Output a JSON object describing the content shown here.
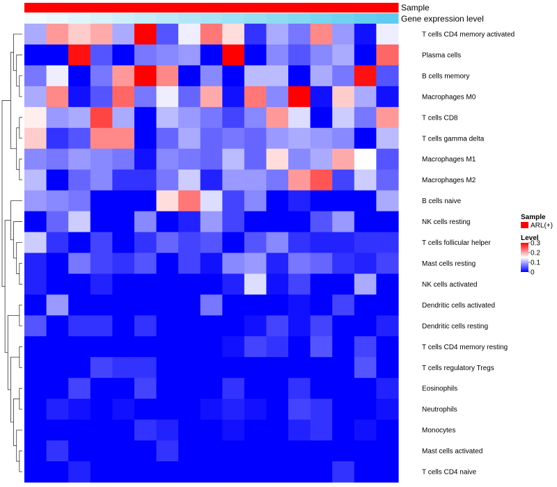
{
  "chart_data": {
    "type": "heatmap",
    "annotations": {
      "sample_label": "Sample",
      "expression_label": "Gene expression level"
    },
    "rows": [
      "T cells CD4 memory activated",
      "Plasma cells",
      "B cells memory",
      "Macrophages M0",
      "T cells CD8",
      "T cells gamma delta",
      "Macrophages M1",
      "Macrophages M2",
      "B cells naive",
      "NK cells resting",
      "T cells follicular helper",
      "Mast cells resting",
      "NK cells activated",
      "Dendritic cells activated",
      "Dendritic cells resting",
      "T cells CD4 memory resting",
      "T cells regulatory  Tregs",
      "Eosinophils",
      "Neutrophils",
      "Monocytes",
      "Mast cells activated",
      "T cells CD4 naive"
    ],
    "values": [
      [
        0.1,
        0.21,
        0.18,
        0.2,
        0.1,
        0.3,
        0.05,
        0.14,
        0.23,
        0.17,
        0.03,
        0.1,
        0.07,
        0.22,
        0.09,
        0.01,
        0.14
      ],
      [
        0.0,
        0.0,
        0.29,
        0.05,
        0.0,
        0.07,
        0.08,
        0.09,
        0.0,
        0.3,
        0.0,
        0.08,
        0.05,
        0.08,
        0.1,
        0.0,
        0.24
      ],
      [
        0.07,
        0.14,
        0.0,
        0.07,
        0.21,
        0.3,
        0.22,
        0.0,
        0.08,
        0.0,
        0.11,
        0.11,
        0.0,
        0.1,
        0.07,
        0.29,
        0.05
      ],
      [
        0.1,
        0.22,
        0.01,
        0.05,
        0.24,
        0.07,
        0.14,
        0.06,
        0.2,
        0.01,
        0.23,
        0.08,
        0.3,
        0.01,
        0.18,
        0.1,
        0.01
      ],
      [
        0.16,
        0.09,
        0.1,
        0.26,
        0.1,
        0.0,
        0.11,
        0.09,
        0.07,
        0.04,
        0.08,
        0.21,
        0.13,
        0.0,
        0.12,
        0.07,
        0.21
      ],
      [
        0.18,
        0.03,
        0.05,
        0.22,
        0.22,
        0.0,
        0.06,
        0.1,
        0.06,
        0.07,
        0.06,
        0.09,
        0.1,
        0.09,
        0.08,
        0.0,
        0.11
      ],
      [
        0.08,
        0.07,
        0.09,
        0.08,
        0.07,
        0.01,
        0.08,
        0.07,
        0.06,
        0.11,
        0.06,
        0.17,
        0.08,
        0.1,
        0.2,
        0.15,
        0.05
      ],
      [
        0.11,
        0.0,
        0.06,
        0.08,
        0.03,
        0.03,
        0.07,
        0.12,
        0.02,
        0.09,
        0.09,
        0.07,
        0.21,
        0.25,
        0.04,
        0.12,
        0.06
      ],
      [
        0.09,
        0.08,
        0.07,
        0.0,
        0.0,
        0.0,
        0.17,
        0.23,
        0.13,
        0.04,
        0.08,
        0.0,
        0.02,
        0.0,
        0.0,
        0.0,
        0.1
      ],
      [
        0.0,
        0.06,
        0.12,
        0.0,
        0.0,
        0.08,
        0.0,
        0.02,
        0.09,
        0.04,
        0.0,
        0.0,
        0.0,
        0.05,
        0.09,
        0.0,
        0.0
      ],
      [
        0.12,
        0.03,
        0.0,
        0.04,
        0.0,
        0.03,
        0.06,
        0.04,
        0.05,
        0.0,
        0.05,
        0.08,
        0.03,
        0.02,
        0.02,
        0.03,
        0.03
      ],
      [
        0.02,
        0.0,
        0.07,
        0.04,
        0.03,
        0.05,
        0.0,
        0.04,
        0.01,
        0.08,
        0.09,
        0.02,
        0.07,
        0.06,
        0.03,
        0.02,
        0.04
      ],
      [
        0.02,
        0.0,
        0.0,
        0.02,
        0.0,
        0.0,
        0.0,
        0.0,
        0.0,
        0.02,
        0.13,
        0.01,
        0.04,
        0.0,
        0.0,
        0.1,
        0.0
      ],
      [
        0.0,
        0.09,
        0.0,
        0.0,
        0.0,
        0.0,
        0.0,
        0.0,
        0.07,
        0.0,
        0.0,
        0.0,
        0.01,
        0.0,
        0.04,
        0.0,
        0.0
      ],
      [
        0.05,
        0.0,
        0.03,
        0.03,
        0.0,
        0.03,
        0.0,
        0.0,
        0.0,
        0.0,
        0.01,
        0.04,
        0.01,
        0.04,
        0.0,
        0.0,
        0.02
      ],
      [
        0.0,
        0.0,
        0.0,
        0.0,
        0.0,
        0.0,
        0.0,
        0.0,
        0.0,
        0.01,
        0.04,
        0.03,
        0.0,
        0.05,
        0.0,
        0.04,
        0.0
      ],
      [
        0.0,
        0.0,
        0.0,
        0.04,
        0.03,
        0.03,
        0.0,
        0.0,
        0.0,
        0.0,
        0.0,
        0.0,
        0.0,
        0.0,
        0.0,
        0.05,
        0.0
      ],
      [
        0.0,
        0.0,
        0.04,
        0.0,
        0.0,
        0.04,
        0.0,
        0.0,
        0.0,
        0.03,
        0.0,
        0.0,
        0.03,
        0.0,
        0.0,
        0.0,
        0.02
      ],
      [
        0.0,
        0.02,
        0.01,
        0.0,
        0.01,
        0.0,
        0.0,
        0.0,
        0.01,
        0.02,
        0.01,
        0.0,
        0.04,
        0.03,
        0.0,
        0.0,
        0.01
      ],
      [
        0.0,
        0.0,
        0.0,
        0.0,
        0.0,
        0.03,
        0.02,
        0.0,
        0.0,
        0.01,
        0.0,
        0.0,
        0.02,
        0.03,
        0.0,
        0.01,
        0.0
      ],
      [
        0.0,
        0.03,
        0.0,
        0.0,
        0.0,
        0.0,
        0.03,
        0.0,
        0.0,
        0.0,
        0.0,
        0.0,
        0.0,
        0.0,
        0.0,
        0.0,
        0.0
      ],
      [
        0.0,
        0.0,
        0.02,
        0.0,
        0.0,
        0.0,
        0.0,
        0.0,
        0.0,
        0.0,
        0.0,
        0.0,
        0.0,
        0.0,
        0.03,
        0.0,
        0.0
      ]
    ],
    "color_scale": {
      "low": "#0000FF",
      "mid": "#FFFFFF",
      "high": "#FF0000",
      "min": 0,
      "mid_value": 0.15,
      "max": 0.3
    },
    "sample_color": "#FF0000",
    "expression_colors": [
      "#F4FBFE",
      "#5DCCEE"
    ],
    "legend": {
      "sample_title": "Sample",
      "sample_entry": "ARL(+)",
      "level_title": "Level",
      "ticks": [
        {
          "value": 0.3,
          "label": "0.3"
        },
        {
          "value": 0.2,
          "label": "0.2"
        },
        {
          "value": 0.1,
          "label": "0.1"
        },
        {
          "value": 0,
          "label": "0"
        }
      ]
    },
    "row_dendrogram": "[[[0,[1,[2,3]]],[[4,5],[6,7]]],[[8,[9,[10,[11,12]]]],[[13,14],[[15,16],[[17,18],[19,[20,21]]]]]]]"
  }
}
